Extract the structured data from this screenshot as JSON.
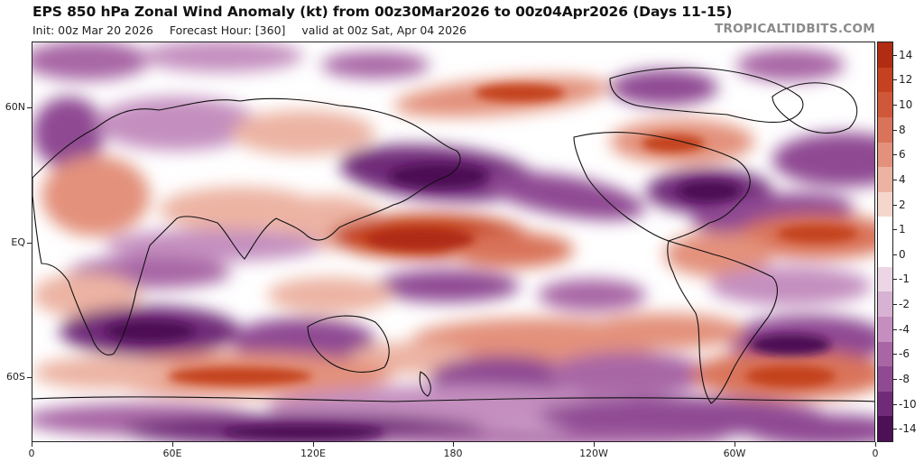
{
  "header": {
    "title": "EPS 850 hPa Zonal Wind Anomaly (kt) from 00z30Mar2026 to 00z04Apr2026 (Days 11-15)",
    "init": "Init: 00z Mar 20 2026",
    "forecast_hour": "Forecast Hour: [360]",
    "valid": "valid at 00z Sat, Apr 04 2026",
    "brand": "TROPICALTIDBITS.COM"
  },
  "map": {
    "lat_labels": [
      "60N",
      "EQ",
      "60S"
    ],
    "lon_labels": [
      "0",
      "60E",
      "120E",
      "180",
      "120W",
      "60W",
      "0"
    ],
    "colors": {
      "ocean_neutral": "#ffffff",
      "land_outline": "#111111"
    }
  },
  "colorbar": {
    "labels": [
      "14",
      "12",
      "10",
      "8",
      "6",
      "4",
      "2",
      "1",
      "0",
      "-1",
      "-2",
      "-4",
      "-6",
      "-8",
      "-10",
      "-14"
    ],
    "colors": [
      "#b02c12",
      "#c4421f",
      "#d0583a",
      "#d9735a",
      "#e3917c",
      "#ecb3a3",
      "#f5d6cc",
      "#ffffff",
      "#ffffff",
      "#ecd6e6",
      "#d8b2d3",
      "#c48fbf",
      "#a866a5",
      "#8f4a93",
      "#6f2a78",
      "#4d0f55"
    ]
  },
  "chart_data": {
    "type": "heatmap",
    "title": "EPS 850 hPa Zonal Wind Anomaly (kt) from 00z30Mar2026 to 00z04Apr2026 (Days 11-15)",
    "units": "kt",
    "x_axis_ticks": [
      "0",
      "60E",
      "120E",
      "180",
      "120W",
      "60W",
      "0"
    ],
    "y_axis_ticks": [
      "60N",
      "EQ",
      "60S"
    ],
    "colorbar_levels": [
      14,
      12,
      10,
      8,
      6,
      4,
      2,
      1,
      0,
      -1,
      -2,
      -4,
      -6,
      -8,
      -10,
      -14
    ]
  }
}
